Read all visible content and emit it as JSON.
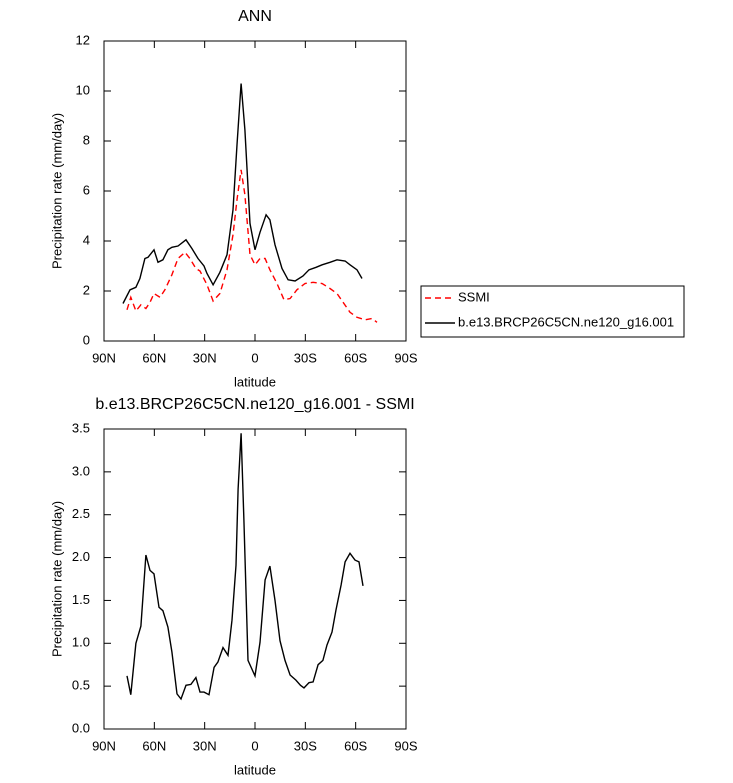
{
  "chart_data": [
    {
      "type": "line",
      "title": "ANN",
      "xlabel": "latitude",
      "ylabel": "Precipitation rate (mm/day)",
      "xlim": [
        90,
        -90
      ],
      "xticks": [
        {
          "value": 90,
          "label": "90N"
        },
        {
          "value": 60,
          "label": "60N"
        },
        {
          "value": 30,
          "label": "30N"
        },
        0,
        {
          "value": -30,
          "label": "30S"
        },
        {
          "value": -60,
          "label": "60S"
        },
        {
          "value": -90,
          "label": "90S"
        }
      ],
      "ylim": [
        0,
        12
      ],
      "yticks": [
        0,
        2,
        4,
        6,
        8,
        10,
        12
      ],
      "legend": "right",
      "series": [
        {
          "name": "SSMI",
          "color": "#ff0000",
          "dashed": true,
          "x": [
            76.3,
            74,
            71,
            68,
            65,
            62.6,
            60.2,
            56.6,
            53.7,
            49.5,
            45.9,
            41.7,
            38.8,
            35.2,
            32.8,
            28.6,
            25,
            20.9,
            16.7,
            13.1,
            10.7,
            8.3,
            6,
            3,
            0,
            -3,
            -6,
            -8.9,
            -13.1,
            -17.3,
            -20.9,
            -25,
            -29.8,
            -34.6,
            -40,
            -44.7,
            -48.9,
            -52.5,
            -56.6,
            -60.8,
            -65.6,
            -69.8,
            -72.7
          ],
          "values": [
            1.25,
            1.75,
            1.2,
            1.45,
            1.3,
            1.55,
            1.9,
            1.75,
            2.05,
            2.65,
            3.3,
            3.55,
            3.3,
            2.9,
            2.8,
            2.25,
            1.6,
            1.9,
            2.85,
            4.25,
            5.65,
            6.85,
            5.85,
            3.45,
            3.05,
            3.3,
            3.3,
            2.85,
            2.3,
            1.65,
            1.7,
            2.05,
            2.3,
            2.35,
            2.3,
            2.1,
            1.9,
            1.55,
            1.15,
            0.95,
            0.85,
            0.9,
            0.75
          ]
        },
        {
          "name": "b.e13.BRCP26C5CN.ne120_g16.001",
          "color": "#000000",
          "dashed": false,
          "x": [
            78.7,
            74.5,
            71,
            68.6,
            65.6,
            63.8,
            60.2,
            57.8,
            54.9,
            51.9,
            49.5,
            45.9,
            41.1,
            37.6,
            34,
            30.4,
            28.6,
            25,
            20.9,
            16.7,
            13.1,
            10.7,
            8.3,
            6,
            3,
            0,
            -3,
            -6.6,
            -8.9,
            -11.9,
            -16.1,
            -19.7,
            -23.9,
            -28.6,
            -32.2,
            -36.4,
            -40,
            -44.7,
            -48.9,
            -53.7,
            -56.6,
            -60.8,
            -63.8
          ],
          "values": [
            1.5,
            2.05,
            2.15,
            2.5,
            3.3,
            3.35,
            3.65,
            3.15,
            3.25,
            3.65,
            3.75,
            3.8,
            4.05,
            3.7,
            3.3,
            3.0,
            2.7,
            2.25,
            2.75,
            3.45,
            5.25,
            7.85,
            10.3,
            8.45,
            4.7,
            3.65,
            4.35,
            5.05,
            4.85,
            3.85,
            2.9,
            2.45,
            2.4,
            2.6,
            2.85,
            2.95,
            3.05,
            3.15,
            3.25,
            3.2,
            3.05,
            2.85,
            2.5
          ]
        }
      ]
    },
    {
      "type": "line",
      "title": "b.e13.BRCP26C5CN.ne120_g16.001 - SSMI",
      "xlabel": "latitude",
      "ylabel": "Precipitation rate (mm/day)",
      "xlim": [
        90,
        -90
      ],
      "xticks": [
        {
          "value": 90,
          "label": "90N"
        },
        {
          "value": 60,
          "label": "60N"
        },
        {
          "value": 30,
          "label": "30N"
        },
        0,
        {
          "value": -30,
          "label": "30S"
        },
        {
          "value": -60,
          "label": "60S"
        },
        {
          "value": -90,
          "label": "90S"
        }
      ],
      "ylim": [
        0,
        3.5
      ],
      "yticks": [
        {
          "value": 0,
          "label": "0.0"
        },
        0.5,
        {
          "value": 1,
          "label": "1.0"
        },
        1.5,
        {
          "value": 2,
          "label": "2.0"
        },
        2.5,
        {
          "value": 3,
          "label": "3.0"
        },
        3.5
      ],
      "series": [
        {
          "color": "#000000",
          "dashed": false,
          "x": [
            76.3,
            74,
            71,
            68,
            65,
            62.6,
            60.2,
            57.2,
            54.9,
            51.9,
            49.5,
            46.5,
            44.1,
            41.1,
            38.2,
            35.2,
            32.8,
            30.4,
            27.4,
            24.4,
            22.1,
            19.1,
            16.1,
            13.7,
            11.3,
            10.1,
            8.3,
            6.6,
            4.2,
            0,
            -3,
            -6,
            -8.9,
            -11.9,
            -14.9,
            -17.9,
            -20.9,
            -24.4,
            -27.1,
            -29.2,
            -32.2,
            -34.6,
            -37.6,
            -40.5,
            -42.9,
            -45.9,
            -48.3,
            -51.3,
            -53.7,
            -56.6,
            -59.6,
            -62,
            -64.4
          ],
          "values": [
            0.62,
            0.4,
            1.0,
            1.2,
            2.03,
            1.85,
            1.81,
            1.42,
            1.38,
            1.19,
            0.9,
            0.41,
            0.35,
            0.51,
            0.52,
            0.6,
            0.43,
            0.43,
            0.4,
            0.72,
            0.78,
            0.95,
            0.86,
            1.27,
            1.91,
            2.8,
            3.45,
            2.44,
            0.8,
            0.62,
            1.01,
            1.74,
            1.9,
            1.5,
            1.03,
            0.8,
            0.63,
            0.57,
            0.51,
            0.48,
            0.54,
            0.55,
            0.75,
            0.8,
            0.98,
            1.13,
            1.39,
            1.68,
            1.95,
            2.05,
            1.97,
            1.95,
            1.67
          ]
        }
      ]
    }
  ]
}
